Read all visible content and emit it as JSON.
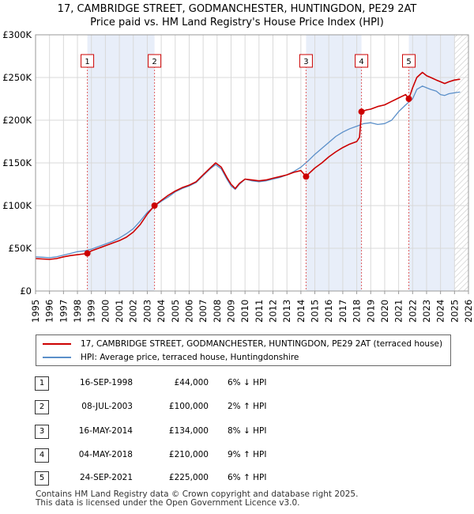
{
  "title_line1": "17, CAMBRIDGE STREET, GODMANCHESTER, HUNTINGDON, PE29 2AT",
  "title_line2": "Price paid vs. HM Land Registry's House Price Index (HPI)",
  "chart_data": {
    "type": "line",
    "ylim": [
      0,
      300000
    ],
    "xlim": [
      1995.0,
      2026.0
    ],
    "y_ticks": [
      {
        "value": 0,
        "label": "£0"
      },
      {
        "value": 50000,
        "label": "£50K"
      },
      {
        "value": 100000,
        "label": "£100K"
      },
      {
        "value": 150000,
        "label": "£150K"
      },
      {
        "value": 200000,
        "label": "£200K"
      },
      {
        "value": 250000,
        "label": "£250K"
      },
      {
        "value": 300000,
        "label": "£300K"
      }
    ],
    "x_ticks": [
      "1995",
      "1996",
      "1997",
      "1998",
      "1999",
      "2000",
      "2001",
      "2002",
      "2003",
      "2004",
      "2005",
      "2006",
      "2007",
      "2008",
      "2009",
      "2010",
      "2011",
      "2012",
      "2013",
      "2014",
      "2015",
      "2016",
      "2017",
      "2018",
      "2019",
      "2020",
      "2021",
      "2022",
      "2023",
      "2024",
      "2025",
      "2026"
    ],
    "series": [
      {
        "name": "17, CAMBRIDGE STREET, GODMANCHESTER, HUNTINGDON, PE29 2AT (terraced house)",
        "color": "#cc0000",
        "x": [
          1995.0,
          1995.5,
          1996.0,
          1996.5,
          1997.0,
          1997.5,
          1998.0,
          1998.5,
          1998.71,
          1999.0,
          1999.5,
          2000.0,
          2000.5,
          2001.0,
          2001.5,
          2002.0,
          2002.5,
          2003.0,
          2003.52,
          2004.0,
          2004.5,
          2005.0,
          2005.5,
          2006.0,
          2006.5,
          2007.0,
          2007.5,
          2007.9,
          2008.3,
          2008.7,
          2009.0,
          2009.3,
          2009.6,
          2010.0,
          2010.5,
          2011.0,
          2011.5,
          2012.0,
          2012.5,
          2013.0,
          2013.5,
          2014.0,
          2014.37,
          2014.6,
          2015.0,
          2015.5,
          2016.0,
          2016.5,
          2017.0,
          2017.5,
          2018.0,
          2018.2,
          2018.34,
          2018.7,
          2019.0,
          2019.5,
          2020.0,
          2020.5,
          2021.0,
          2021.5,
          2021.73,
          2022.0,
          2022.3,
          2022.7,
          2023.0,
          2023.3,
          2023.7,
          2024.0,
          2024.3,
          2024.6,
          2025.0,
          2025.4
        ],
        "y": [
          38000,
          37500,
          37000,
          38000,
          40000,
          41500,
          42500,
          43500,
          44000,
          47000,
          50000,
          53000,
          56000,
          59000,
          63000,
          69000,
          78000,
          90000,
          100000,
          106000,
          112000,
          117000,
          121000,
          124000,
          128000,
          136000,
          144000,
          150000,
          145000,
          133000,
          125000,
          120000,
          126000,
          131000,
          130000,
          129000,
          130000,
          132000,
          134000,
          136000,
          139000,
          141000,
          134000,
          138000,
          144000,
          150000,
          157000,
          163000,
          168000,
          172000,
          175000,
          180000,
          210000,
          212000,
          213000,
          216000,
          218000,
          222000,
          226000,
          230000,
          225000,
          238000,
          250000,
          256000,
          252000,
          250000,
          247000,
          245000,
          243000,
          245000,
          247000,
          248000
        ]
      },
      {
        "name": "HPI: Average price, terraced house, Huntingdonshire",
        "color": "#5b8fc9",
        "x": [
          1995.0,
          1995.5,
          1996.0,
          1996.5,
          1997.0,
          1997.5,
          1998.0,
          1998.5,
          1999.0,
          1999.5,
          2000.0,
          2000.5,
          2001.0,
          2001.5,
          2002.0,
          2002.5,
          2003.0,
          2003.5,
          2004.0,
          2004.5,
          2005.0,
          2005.5,
          2006.0,
          2006.5,
          2007.0,
          2007.5,
          2007.9,
          2008.3,
          2008.7,
          2009.0,
          2009.3,
          2009.6,
          2010.0,
          2010.5,
          2011.0,
          2011.5,
          2012.0,
          2012.5,
          2013.0,
          2013.5,
          2014.0,
          2014.5,
          2015.0,
          2015.5,
          2016.0,
          2016.5,
          2017.0,
          2017.5,
          2018.0,
          2018.5,
          2019.0,
          2019.5,
          2020.0,
          2020.5,
          2021.0,
          2021.5,
          2022.0,
          2022.3,
          2022.7,
          2023.0,
          2023.3,
          2023.7,
          2024.0,
          2024.3,
          2024.6,
          2025.0,
          2025.4
        ],
        "y": [
          40000,
          39500,
          39000,
          40000,
          42000,
          44000,
          46000,
          47000,
          49000,
          52000,
          55000,
          58000,
          62000,
          67000,
          73000,
          82000,
          92000,
          99000,
          105000,
          110000,
          116000,
          120000,
          123000,
          127000,
          135000,
          143000,
          148000,
          143000,
          131000,
          123000,
          119000,
          125000,
          131000,
          129000,
          128000,
          129000,
          131000,
          133000,
          136000,
          140000,
          145000,
          152000,
          160000,
          167000,
          174000,
          181000,
          186000,
          190000,
          193000,
          196000,
          197000,
          195000,
          196000,
          200000,
          210000,
          218000,
          225000,
          236000,
          240000,
          238000,
          236000,
          234000,
          230000,
          229000,
          231000,
          232000,
          233000
        ]
      }
    ],
    "sales": [
      {
        "num": "1",
        "x": 1998.71,
        "price": 44000
      },
      {
        "num": "2",
        "x": 2003.52,
        "price": 100000
      },
      {
        "num": "3",
        "x": 2014.37,
        "price": 134000
      },
      {
        "num": "4",
        "x": 2018.34,
        "price": 210000
      },
      {
        "num": "5",
        "x": 2021.73,
        "price": 225000
      }
    ],
    "shaded_ranges": [
      [
        1998.71,
        2003.52
      ],
      [
        2014.37,
        2018.34
      ],
      [
        2021.73,
        2025.0
      ]
    ],
    "hatched_from": 2025.0
  },
  "legend": {
    "property": "17, CAMBRIDGE STREET, GODMANCHESTER, HUNTINGDON, PE29 2AT (terraced house)",
    "hpi": "HPI: Average price, terraced house, Huntingdonshire"
  },
  "transactions": [
    {
      "num": "1",
      "date": "16-SEP-1998",
      "price": "£44,000",
      "hpi": "6% ↓ HPI"
    },
    {
      "num": "2",
      "date": "08-JUL-2003",
      "price": "£100,000",
      "hpi": "2% ↑ HPI"
    },
    {
      "num": "3",
      "date": "16-MAY-2014",
      "price": "£134,000",
      "hpi": "8% ↓ HPI"
    },
    {
      "num": "4",
      "date": "04-MAY-2018",
      "price": "£210,000",
      "hpi": "9% ↑ HPI"
    },
    {
      "num": "5",
      "date": "24-SEP-2021",
      "price": "£225,000",
      "hpi": "6% ↑ HPI"
    }
  ],
  "footer": {
    "line1": "Contains HM Land Registry data © Crown copyright and database right 2025.",
    "line2": "This data is licensed under the Open Government Licence v3.0."
  }
}
